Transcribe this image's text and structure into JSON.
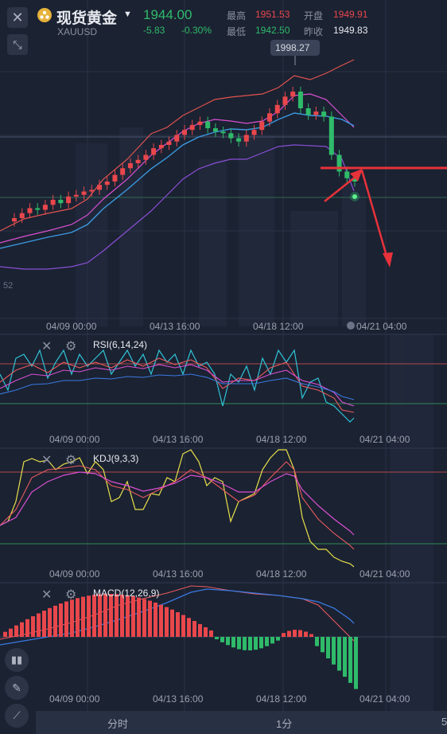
{
  "header": {
    "name": "现货黄金",
    "symbol": "XAUUSD",
    "price": "1944.00",
    "change": "-5.83",
    "change_pct": "-0.30%",
    "high_label": "最高",
    "high": "1951.53",
    "open_label": "开盘",
    "open": "1949.91",
    "low_label": "最低",
    "low": "1942.50",
    "prev_label": "昨收",
    "prev": "1949.83"
  },
  "main_chart": {
    "peak_label": "1998.27",
    "left_axis_label": "52",
    "x_ticks": [
      "04/09 00:00",
      "04/13 16:00",
      "04/18 12:00",
      "04/21 04:00"
    ]
  },
  "rsi": {
    "title": "RSI(6,14,24)",
    "x_ticks": [
      "04/09 00:00",
      "04/13 16:00",
      "04/18 12:00",
      "04/21 04:00"
    ]
  },
  "kdj": {
    "title": "KDJ(9,3,3)",
    "x_ticks": [
      "04/09 00:00",
      "04/13 16:00",
      "04/18 12:00",
      "04/21 04:00"
    ]
  },
  "macd": {
    "title": "MACD(12,26,9)",
    "x_ticks": [
      "04/09 00:00",
      "04/13 16:00",
      "04/18 12:00",
      "04/21 04:00"
    ]
  },
  "bottom_tabs": [
    "分时",
    "1分",
    "5"
  ],
  "colors": {
    "up": "#e8474c",
    "down": "#2fbb6a",
    "bg": "#1b2232"
  },
  "chart_data": {
    "type": "candlestick",
    "note_series": "approximate closes read from chart",
    "closes": [
      1922,
      1925,
      1928,
      1927,
      1930,
      1933,
      1931,
      1935,
      1936,
      1938,
      1939,
      1942,
      1944,
      1948,
      1952,
      1955,
      1957,
      1960,
      1964,
      1966,
      1968,
      1972,
      1975,
      1978,
      1980,
      1976,
      1974,
      1973,
      1970,
      1968,
      1972,
      1975,
      1980,
      1985,
      1990,
      1995,
      1998,
      1988,
      1984,
      1986,
      1983,
      1960,
      1950,
      1946,
      1944
    ],
    "ylim": [
      1900,
      2010
    ]
  }
}
